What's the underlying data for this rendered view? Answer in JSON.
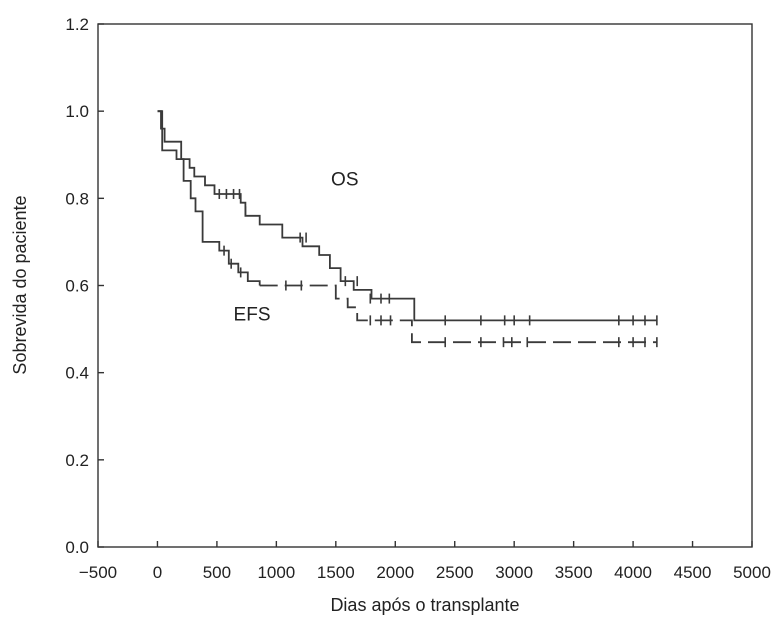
{
  "chart_data": {
    "type": "line",
    "xlabel": "Dias após o transplante",
    "ylabel": "Sobrevida do paciente",
    "xlim": [
      -500,
      5000
    ],
    "ylim": [
      0.0,
      1.2
    ],
    "x_ticks": [
      -500,
      0,
      500,
      1000,
      1500,
      2000,
      2500,
      3000,
      3500,
      4000,
      4500,
      5000
    ],
    "x_tick_labels": [
      "−500",
      "0",
      "500",
      "1000",
      "1500",
      "2000",
      "2500",
      "3000",
      "3500",
      "4000",
      "4500",
      "5000"
    ],
    "y_ticks": [
      0.0,
      0.2,
      0.4,
      0.6,
      0.8,
      1.0,
      1.2
    ],
    "y_tick_labels": [
      "0.0",
      "0.2",
      "0.4",
      "0.6",
      "0.8",
      "1.0",
      "1.2"
    ],
    "grid": false,
    "series": [
      {
        "name": "OS",
        "style": "solid",
        "label_at": [
          1460,
          0.83
        ],
        "steps": [
          [
            0,
            1.0
          ],
          [
            30,
            0.96
          ],
          [
            60,
            0.93
          ],
          [
            200,
            0.89
          ],
          [
            270,
            0.87
          ],
          [
            310,
            0.85
          ],
          [
            400,
            0.83
          ],
          [
            480,
            0.81
          ],
          [
            700,
            0.79
          ],
          [
            740,
            0.76
          ],
          [
            860,
            0.74
          ],
          [
            1050,
            0.71
          ],
          [
            1220,
            0.69
          ],
          [
            1360,
            0.67
          ],
          [
            1450,
            0.64
          ],
          [
            1540,
            0.61
          ],
          [
            1650,
            0.59
          ],
          [
            1800,
            0.57
          ],
          [
            2160,
            0.52
          ],
          [
            4200,
            0.52
          ]
        ],
        "censors": [
          [
            520,
            0.81
          ],
          [
            580,
            0.81
          ],
          [
            640,
            0.81
          ],
          [
            690,
            0.81
          ],
          [
            740,
            0.77
          ],
          [
            1200,
            0.71
          ],
          [
            1250,
            0.71
          ],
          [
            1580,
            0.61
          ],
          [
            1680,
            0.61
          ],
          [
            1790,
            0.57
          ],
          [
            1880,
            0.57
          ],
          [
            1950,
            0.57
          ],
          [
            2420,
            0.52
          ],
          [
            2720,
            0.52
          ],
          [
            2920,
            0.52
          ],
          [
            3000,
            0.52
          ],
          [
            3130,
            0.52
          ],
          [
            3880,
            0.52
          ],
          [
            4000,
            0.52
          ],
          [
            4100,
            0.52
          ],
          [
            4200,
            0.52
          ]
        ]
      },
      {
        "name": "EFS",
        "style": "dashed",
        "label_at": [
          640,
          0.52
        ],
        "steps": [
          [
            0,
            1.0
          ],
          [
            40,
            0.91
          ],
          [
            160,
            0.89
          ],
          [
            220,
            0.84
          ],
          [
            280,
            0.8
          ],
          [
            320,
            0.77
          ],
          [
            380,
            0.7
          ],
          [
            520,
            0.68
          ],
          [
            600,
            0.65
          ],
          [
            680,
            0.63
          ],
          [
            760,
            0.61
          ],
          [
            860,
            0.6
          ],
          [
            1500,
            0.57
          ],
          [
            1600,
            0.55
          ],
          [
            1680,
            0.52
          ],
          [
            2140,
            0.47
          ],
          [
            4200,
            0.47
          ]
        ],
        "censors": [
          [
            560,
            0.68
          ],
          [
            620,
            0.65
          ],
          [
            700,
            0.63
          ],
          [
            1080,
            0.6
          ],
          [
            1210,
            0.6
          ],
          [
            1790,
            0.52
          ],
          [
            1880,
            0.52
          ],
          [
            1960,
            0.52
          ],
          [
            2420,
            0.47
          ],
          [
            2720,
            0.47
          ],
          [
            2910,
            0.47
          ],
          [
            2980,
            0.47
          ],
          [
            3110,
            0.47
          ],
          [
            3880,
            0.47
          ],
          [
            4000,
            0.47
          ],
          [
            4100,
            0.47
          ],
          [
            4200,
            0.47
          ]
        ]
      }
    ]
  }
}
